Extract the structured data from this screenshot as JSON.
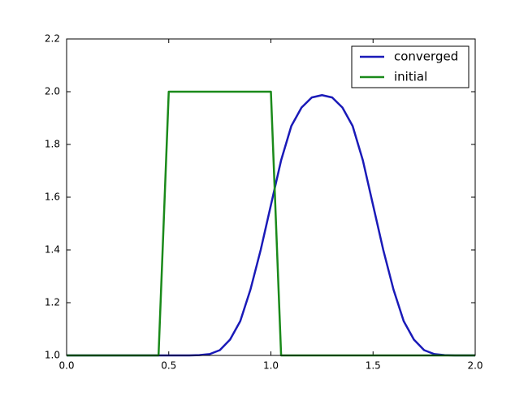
{
  "chart_data": {
    "type": "line",
    "x": [
      0.0,
      0.05,
      0.1,
      0.15,
      0.2,
      0.25,
      0.3,
      0.35,
      0.4,
      0.45,
      0.5,
      0.55,
      0.6,
      0.65,
      0.7,
      0.75,
      0.8,
      0.85,
      0.9,
      0.95,
      1.0,
      1.05,
      1.1,
      1.15,
      1.2,
      1.25,
      1.3,
      1.35,
      1.4,
      1.45,
      1.5,
      1.55,
      1.6,
      1.65,
      1.7,
      1.75,
      1.8,
      1.85,
      1.9,
      1.95,
      2.0
    ],
    "series": [
      {
        "name": "converged",
        "color": "#1a1ab8",
        "values": [
          1.0,
          1.0,
          1.0,
          1.0,
          1.0,
          1.0,
          1.0,
          1.0,
          1.0,
          1.0,
          1.0,
          1.0,
          1.0,
          1.001,
          1.005,
          1.02,
          1.06,
          1.13,
          1.25,
          1.4,
          1.57,
          1.74,
          1.87,
          1.94,
          1.978,
          1.987,
          1.978,
          1.94,
          1.87,
          1.74,
          1.57,
          1.4,
          1.25,
          1.13,
          1.06,
          1.02,
          1.005,
          1.001,
          1.0,
          1.0,
          1.0
        ]
      },
      {
        "name": "initial",
        "color": "#1a8a1a",
        "values": [
          1,
          1,
          1,
          1,
          1,
          1,
          1,
          1,
          1,
          1,
          2,
          2,
          2,
          2,
          2,
          2,
          2,
          2,
          2,
          2,
          2,
          1,
          1,
          1,
          1,
          1,
          1,
          1,
          1,
          1,
          1,
          1,
          1,
          1,
          1,
          1,
          1,
          1,
          1,
          1,
          1
        ]
      }
    ],
    "xlim": [
      0,
      2
    ],
    "ylim": [
      1.0,
      2.2
    ],
    "xticks": [
      {
        "value": 0,
        "label": "0.0"
      },
      {
        "value": 0.5,
        "label": "0.5"
      },
      {
        "value": 1,
        "label": "1.0"
      },
      {
        "value": 1.5,
        "label": "1.5"
      },
      {
        "value": 2,
        "label": "2.0"
      }
    ],
    "yticks": [
      {
        "value": 1,
        "label": "1.0"
      },
      {
        "value": 1.2,
        "label": "1.2"
      },
      {
        "value": 1.4,
        "label": "1.4"
      },
      {
        "value": 1.6,
        "label": "1.6"
      },
      {
        "value": 1.8,
        "label": "1.8"
      },
      {
        "value": 2,
        "label": "2.0"
      },
      {
        "value": 2.2,
        "label": "2.2"
      }
    ],
    "grid": false,
    "legend": "upper right"
  }
}
